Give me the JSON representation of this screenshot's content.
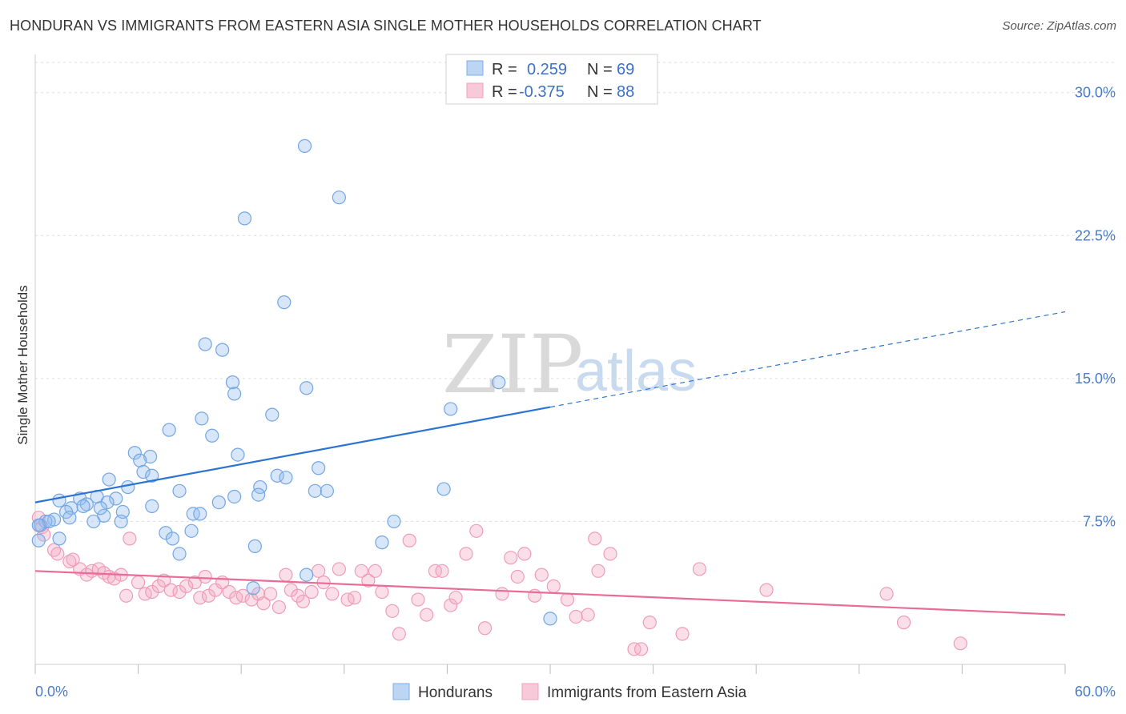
{
  "title": "HONDURAN VS IMMIGRANTS FROM EASTERN ASIA SINGLE MOTHER HOUSEHOLDS CORRELATION CHART",
  "source": "Source: ZipAtlas.com",
  "watermark": {
    "zip": "ZIP",
    "atlas": "atlas"
  },
  "colors": {
    "blue": "#7aaee8",
    "blue_line": "#2c74d3",
    "pink": "#f0a0bb",
    "pink_line": "#e86b98",
    "axis_text": "#4a7cc9"
  },
  "legend": {
    "row1": {
      "r_label": "R =",
      "r_value": "0.259",
      "n_label": "N =",
      "n_value": "69"
    },
    "row2": {
      "r_label": "R =",
      "r_value": "-0.375",
      "n_label": "N =",
      "n_value": "88"
    }
  },
  "bottom_legend": {
    "series1": "Hondurans",
    "series2": "Immigrants from Eastern Asia"
  },
  "chart_data": {
    "type": "scatter",
    "title": "HONDURAN VS IMMIGRANTS FROM EASTERN ASIA SINGLE MOTHER HOUSEHOLDS CORRELATION CHART",
    "xlabel": "",
    "ylabel": "Single Mother Households",
    "xlim": [
      0,
      60
    ],
    "ylim": [
      0,
      31.5
    ],
    "x_tick_labels": [
      "0.0%",
      "60.0%"
    ],
    "y_ticks": [
      7.5,
      15.0,
      22.5,
      30.0
    ],
    "y_tick_labels": [
      "7.5%",
      "15.0%",
      "22.5%",
      "30.0%"
    ],
    "series": [
      {
        "name": "Hondurans",
        "R": 0.259,
        "N": 69,
        "trend": {
          "x0": 0,
          "y0": 8.5,
          "x1": 30,
          "y1": 13.5,
          "x_dashed_end": 60,
          "y_dashed_end": 18.5
        },
        "points": [
          [
            15.7,
            27.2
          ],
          [
            17.7,
            24.5
          ],
          [
            12.2,
            23.4
          ],
          [
            14.5,
            19.0
          ],
          [
            9.9,
            16.8
          ],
          [
            10.9,
            16.5
          ],
          [
            11.5,
            14.8
          ],
          [
            11.6,
            14.2
          ],
          [
            15.8,
            14.5
          ],
          [
            27.0,
            14.8
          ],
          [
            24.2,
            13.4
          ],
          [
            9.7,
            12.9
          ],
          [
            13.8,
            13.1
          ],
          [
            7.8,
            12.3
          ],
          [
            10.3,
            12.0
          ],
          [
            11.8,
            11.0
          ],
          [
            5.8,
            11.1
          ],
          [
            6.7,
            10.9
          ],
          [
            6.1,
            10.7
          ],
          [
            6.3,
            10.1
          ],
          [
            6.8,
            9.9
          ],
          [
            4.3,
            9.7
          ],
          [
            14.1,
            9.9
          ],
          [
            14.6,
            9.8
          ],
          [
            16.5,
            10.3
          ],
          [
            5.4,
            9.3
          ],
          [
            13.1,
            9.3
          ],
          [
            13.0,
            8.9
          ],
          [
            8.4,
            9.1
          ],
          [
            11.6,
            8.8
          ],
          [
            16.3,
            9.1
          ],
          [
            17.0,
            9.1
          ],
          [
            23.8,
            9.2
          ],
          [
            1.4,
            8.6
          ],
          [
            2.6,
            8.7
          ],
          [
            3.6,
            8.8
          ],
          [
            4.7,
            8.7
          ],
          [
            4.2,
            8.5
          ],
          [
            3.0,
            8.4
          ],
          [
            2.1,
            8.2
          ],
          [
            1.8,
            8.0
          ],
          [
            2.8,
            8.3
          ],
          [
            4.0,
            7.8
          ],
          [
            5.1,
            8.0
          ],
          [
            6.8,
            8.3
          ],
          [
            9.2,
            7.9
          ],
          [
            9.6,
            7.9
          ],
          [
            10.7,
            8.5
          ],
          [
            1.1,
            7.6
          ],
          [
            0.6,
            7.5
          ],
          [
            0.3,
            7.3
          ],
          [
            0.8,
            7.5
          ],
          [
            3.4,
            7.5
          ],
          [
            5.0,
            7.5
          ],
          [
            7.6,
            6.9
          ],
          [
            8.0,
            6.6
          ],
          [
            9.1,
            7.0
          ],
          [
            20.9,
            7.5
          ],
          [
            20.2,
            6.4
          ],
          [
            12.8,
            6.2
          ],
          [
            0.2,
            6.5
          ],
          [
            8.4,
            5.8
          ],
          [
            15.8,
            4.7
          ],
          [
            12.7,
            4.0
          ],
          [
            30.0,
            2.4
          ],
          [
            0.2,
            7.3
          ],
          [
            1.4,
            6.6
          ],
          [
            2.0,
            7.7
          ],
          [
            3.8,
            8.2
          ]
        ]
      },
      {
        "name": "Immigrants from Eastern Asia",
        "R": -0.375,
        "N": 88,
        "trend": {
          "x0": 0,
          "y0": 4.9,
          "x1": 60,
          "y1": 2.6
        },
        "points": [
          [
            0.2,
            7.7
          ],
          [
            0.4,
            7.2
          ],
          [
            0.5,
            6.8
          ],
          [
            1.1,
            6.0
          ],
          [
            1.3,
            5.8
          ],
          [
            2.0,
            5.4
          ],
          [
            2.2,
            5.5
          ],
          [
            2.6,
            5.0
          ],
          [
            3.0,
            4.7
          ],
          [
            3.3,
            4.9
          ],
          [
            3.7,
            5.0
          ],
          [
            4.0,
            4.8
          ],
          [
            4.3,
            4.6
          ],
          [
            4.6,
            4.5
          ],
          [
            5.0,
            4.7
          ],
          [
            5.3,
            3.6
          ],
          [
            5.5,
            6.6
          ],
          [
            6.0,
            4.3
          ],
          [
            6.4,
            3.7
          ],
          [
            6.8,
            3.8
          ],
          [
            7.2,
            4.1
          ],
          [
            7.5,
            4.4
          ],
          [
            7.9,
            3.9
          ],
          [
            8.4,
            3.8
          ],
          [
            8.8,
            4.1
          ],
          [
            9.3,
            4.3
          ],
          [
            9.6,
            3.5
          ],
          [
            9.9,
            4.6
          ],
          [
            10.1,
            3.6
          ],
          [
            10.5,
            3.9
          ],
          [
            10.9,
            4.3
          ],
          [
            11.3,
            3.8
          ],
          [
            11.7,
            3.5
          ],
          [
            12.1,
            3.6
          ],
          [
            12.6,
            3.4
          ],
          [
            13.0,
            3.7
          ],
          [
            13.3,
            3.2
          ],
          [
            13.7,
            3.7
          ],
          [
            14.2,
            3.0
          ],
          [
            14.6,
            4.7
          ],
          [
            14.9,
            3.9
          ],
          [
            15.3,
            3.6
          ],
          [
            15.6,
            3.3
          ],
          [
            16.1,
            3.8
          ],
          [
            16.5,
            4.9
          ],
          [
            16.8,
            4.3
          ],
          [
            17.3,
            3.7
          ],
          [
            17.7,
            5.0
          ],
          [
            18.2,
            3.4
          ],
          [
            18.6,
            3.5
          ],
          [
            19.0,
            4.9
          ],
          [
            19.4,
            4.4
          ],
          [
            19.8,
            4.9
          ],
          [
            20.2,
            3.8
          ],
          [
            20.8,
            2.8
          ],
          [
            21.2,
            1.6
          ],
          [
            21.8,
            6.5
          ],
          [
            22.3,
            3.4
          ],
          [
            22.8,
            2.6
          ],
          [
            23.3,
            4.9
          ],
          [
            23.7,
            4.9
          ],
          [
            24.2,
            3.1
          ],
          [
            24.5,
            3.5
          ],
          [
            25.1,
            5.8
          ],
          [
            25.7,
            7.0
          ],
          [
            26.2,
            1.9
          ],
          [
            27.2,
            3.7
          ],
          [
            27.7,
            5.6
          ],
          [
            28.1,
            4.6
          ],
          [
            28.5,
            5.8
          ],
          [
            29.1,
            3.6
          ],
          [
            29.5,
            4.7
          ],
          [
            30.2,
            4.1
          ],
          [
            31.0,
            3.4
          ],
          [
            31.5,
            2.5
          ],
          [
            32.2,
            2.6
          ],
          [
            32.6,
            6.6
          ],
          [
            32.8,
            4.9
          ],
          [
            33.5,
            5.8
          ],
          [
            34.9,
            0.8
          ],
          [
            35.8,
            2.2
          ],
          [
            37.7,
            1.6
          ],
          [
            38.7,
            5.0
          ],
          [
            42.6,
            3.9
          ],
          [
            49.6,
            3.7
          ],
          [
            50.6,
            2.2
          ],
          [
            53.9,
            1.1
          ],
          [
            35.3,
            0.8
          ]
        ]
      }
    ]
  }
}
